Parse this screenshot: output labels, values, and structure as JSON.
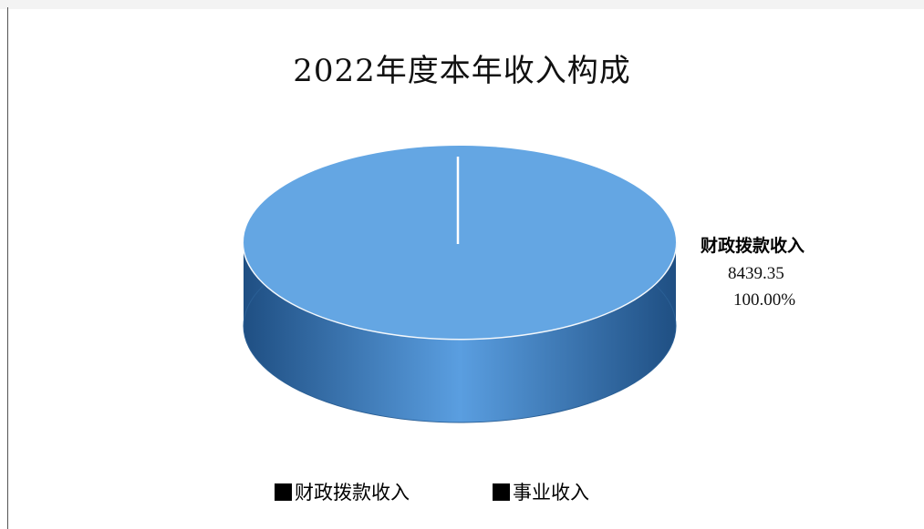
{
  "chart_data": {
    "type": "pie",
    "title": "2022年度本年收入构成",
    "slices": [
      {
        "name": "财政拨款收入",
        "value": 8439.35,
        "percent": "100.00%",
        "value_label": "8439.35"
      },
      {
        "name": "事业收入",
        "value": 0
      }
    ],
    "legend": [
      "财政拨款收入",
      "事业收入"
    ],
    "legend_position": "bottom",
    "colors": {
      "slice_top": "#64a6e3",
      "slice_side": "#2f6aa6",
      "legend_marker": "#000000"
    }
  }
}
